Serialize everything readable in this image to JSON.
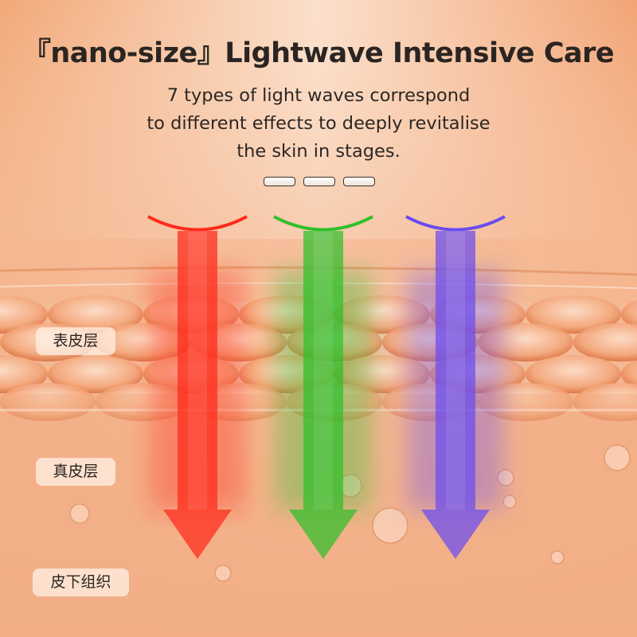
{
  "header": {
    "title": "『nano-size』Lightwave Intensive Care",
    "subtitle_lines": [
      "7 types of light waves correspond",
      "to different effects to deeply revitalise",
      "the skin in stages."
    ]
  },
  "pagination": {
    "count": 3
  },
  "layers": [
    {
      "label": "表皮层"
    },
    {
      "label": "真皮层"
    },
    {
      "label": "皮下组织"
    }
  ],
  "light_arrows": [
    {
      "color": "#ff2a1a",
      "name": "red"
    },
    {
      "color": "#2fbf2a",
      "name": "green"
    },
    {
      "color": "#6a4cf0",
      "name": "purple"
    }
  ],
  "colors": {
    "background": "#f4b58f",
    "text": "#2a2522"
  }
}
